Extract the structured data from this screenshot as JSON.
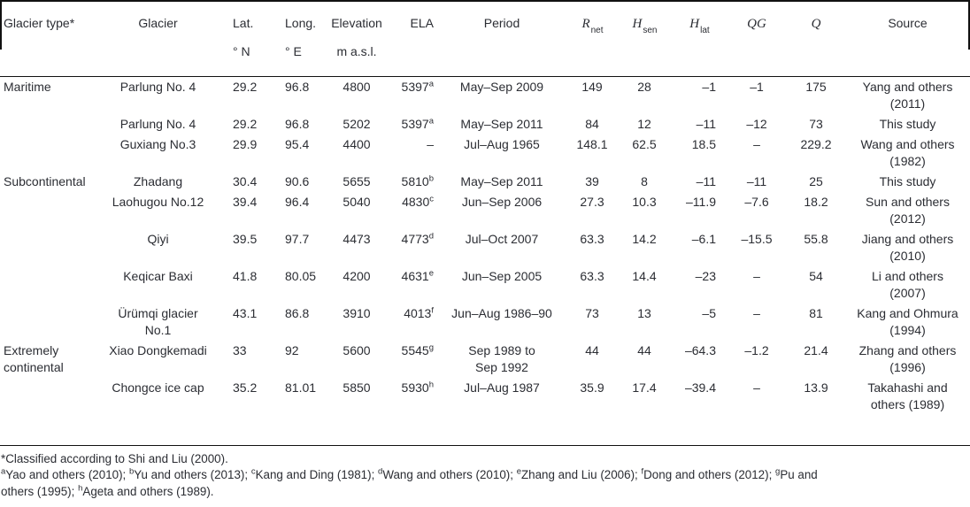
{
  "colors": {
    "text": "#2b2d33",
    "rule": "#111111",
    "background": "#ffffff"
  },
  "table": {
    "columns": [
      {
        "id": "type",
        "label": "Glacier type*",
        "sub": ""
      },
      {
        "id": "glacier",
        "label": "Glacier",
        "sub": ""
      },
      {
        "id": "lat",
        "label": "Lat.",
        "sub": "° N"
      },
      {
        "id": "long",
        "label": "Long.",
        "sub": "° E"
      },
      {
        "id": "elev",
        "label": "Elevation",
        "sub": "m a.s.l."
      },
      {
        "id": "ela",
        "label": "ELA",
        "sub": ""
      },
      {
        "id": "period",
        "label": "Period",
        "sub": ""
      },
      {
        "id": "rnet",
        "label": "R",
        "labelSub": "net",
        "math": true,
        "sub": ""
      },
      {
        "id": "hsen",
        "label": "H",
        "labelSub": "sen",
        "math": true,
        "sub": ""
      },
      {
        "id": "hlat",
        "label": "H",
        "labelSub": "lat",
        "math": true,
        "sub": ""
      },
      {
        "id": "qg",
        "label": "QG",
        "math": true,
        "sub": ""
      },
      {
        "id": "q",
        "label": "Q",
        "math": true,
        "sub": ""
      },
      {
        "id": "source",
        "label": "Source",
        "sub": ""
      }
    ],
    "rows": [
      {
        "type": "Maritime",
        "glacier": "Parlung No. 4",
        "lat": "29.2",
        "long": "96.8",
        "elev": "4800",
        "ela": "5397^a",
        "period": "May–Sep 2009",
        "rnet": "149",
        "hsen": "28",
        "hlat": "–1",
        "qg": "–1",
        "q": "175",
        "source": [
          "Yang and others",
          "(2011)"
        ]
      },
      {
        "type": "",
        "glacier": "Parlung No. 4",
        "lat": "29.2",
        "long": "96.8",
        "elev": "5202",
        "ela": "5397^a",
        "period": "May–Sep 2011",
        "rnet": "84",
        "hsen": "12",
        "hlat": "–11",
        "qg": "–12",
        "q": "73",
        "source": "This study"
      },
      {
        "type": "",
        "glacier": "Guxiang No.3",
        "lat": "29.9",
        "long": "95.4",
        "elev": "4400",
        "ela": "–",
        "period": "Jul–Aug 1965",
        "rnet": "148.1",
        "hsen": "62.5",
        "hlat": "18.5",
        "qg": "–",
        "q": "229.2",
        "source": [
          "Wang and others",
          "(1982)"
        ]
      },
      {
        "type": "Subcontinental",
        "glacier": "Zhadang",
        "lat": "30.4",
        "long": "90.6",
        "elev": "5655",
        "ela": "5810^b",
        "period": "May–Sep 2011",
        "rnet": "39",
        "hsen": "8",
        "hlat": "–11",
        "qg": "–11",
        "q": "25",
        "source": "This study"
      },
      {
        "type": "",
        "glacier": "Laohugou No.12",
        "lat": "39.4",
        "long": "96.4",
        "elev": "5040",
        "ela": "4830^c",
        "period": "Jun–Sep 2006",
        "rnet": "27.3",
        "hsen": "10.3",
        "hlat": "–11.9",
        "qg": "–7.6",
        "q": "18.2",
        "source": [
          "Sun and others",
          "(2012)"
        ]
      },
      {
        "type": "",
        "glacier": "Qiyi",
        "lat": "39.5",
        "long": "97.7",
        "elev": "4473",
        "ela": "4773^d",
        "period": "Jul–Oct 2007",
        "rnet": "63.3",
        "hsen": "14.2",
        "hlat": "–6.1",
        "qg": "–15.5",
        "q": "55.8",
        "source": [
          "Jiang and others",
          "(2010)"
        ]
      },
      {
        "type": "",
        "glacier": "Keqicar Baxi",
        "lat": "41.8",
        "long": "80.05",
        "elev": "4200",
        "ela": "4631^e",
        "period": "Jun–Sep 2005",
        "rnet": "63.3",
        "hsen": "14.4",
        "hlat": "–23",
        "qg": "–",
        "q": "54",
        "source": [
          "Li and others",
          "(2007)"
        ]
      },
      {
        "type": "",
        "glacier": [
          "Ürümqi glacier",
          "No.1"
        ],
        "lat": "43.1",
        "long": "86.8",
        "elev": "3910",
        "ela": "4013^f",
        "period": "Jun–Aug 1986–90",
        "rnet": "73",
        "hsen": "13",
        "hlat": "–5",
        "qg": "–",
        "q": "81",
        "source": [
          "Kang and Ohmura",
          "(1994)"
        ]
      },
      {
        "type": [
          "Extremely",
          "continental"
        ],
        "glacier": "Xiao Dongkemadi",
        "lat": "33",
        "long": "92",
        "elev": "5600",
        "ela": "5545^g",
        "period": [
          "Sep 1989 to",
          "Sep 1992"
        ],
        "rnet": "44",
        "hsen": "44",
        "hlat": "–64.3",
        "qg": "–1.2",
        "q": "21.4",
        "source": [
          "Zhang and others",
          "(1996)"
        ]
      },
      {
        "type": "",
        "glacier": "Chongce ice cap",
        "lat": "35.2",
        "long": "81.01",
        "elev": "5850",
        "ela": "5930^h",
        "period": "Jul–Aug 1987",
        "rnet": "35.9",
        "hsen": "17.4",
        "hlat": "–39.4",
        "qg": "–",
        "q": "13.9",
        "source": [
          "Takahashi and",
          "others (1989)"
        ]
      }
    ]
  },
  "footnotes": {
    "lines": [
      "*Classified according to Shi and Liu (2000).",
      "^aYao and others (2010); ^bYu and others (2013); ^cKang and Ding (1981); ^dWang and others (2010); ^eZhang and Liu (2006); ^fDong and others (2012); ^gPu and",
      "others (1995); ^hAgeta and others (1989)."
    ]
  }
}
